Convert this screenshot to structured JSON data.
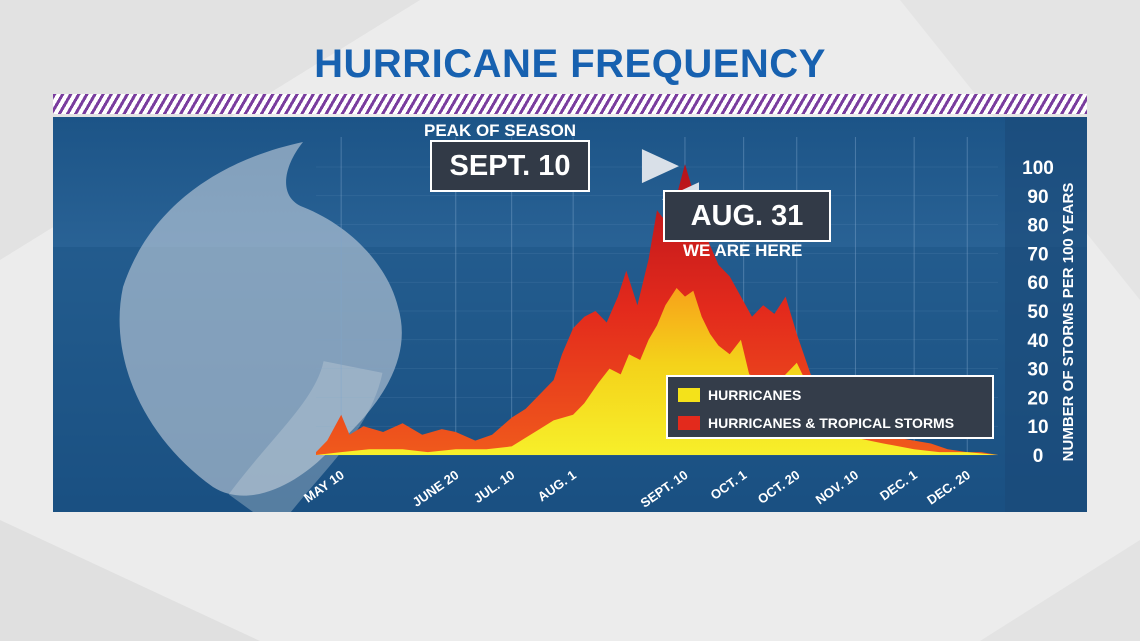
{
  "title": "HURRICANE FREQUENCY",
  "annotations": {
    "peak_caption": "PEAK OF SEASON",
    "peak_date": "SEPT. 10",
    "current_date": "AUG. 31",
    "current_caption": "WE ARE HERE"
  },
  "legend": {
    "hurricanes": "HURRICANES",
    "all_storms": "HURRICANES & TROPICAL STORMS"
  },
  "colors": {
    "title": "#1761b0",
    "hurricanes": "#f4e21a",
    "all_storms": "#e32a1c",
    "panel_bg": "#1f4f80",
    "stripe": "#7a3d9e"
  },
  "chart_data": {
    "type": "area",
    "ylabel": "NUMBER OF STORMS PER 100 YEARS",
    "ylim": [
      0,
      100
    ],
    "yticks": [
      0,
      10,
      20,
      30,
      40,
      50,
      60,
      70,
      80,
      90,
      100
    ],
    "xlim": [
      "May 1",
      "Dec 31"
    ],
    "xticks": [
      "MAY 10",
      "JUNE 20",
      "JUL. 10",
      "AUG. 1",
      "SEPT. 10",
      "OCT. 1",
      "OCT. 20",
      "NOV. 10",
      "DEC. 1",
      "DEC. 20"
    ],
    "grid": true,
    "legend_position": "bottom-right",
    "series": [
      {
        "name": "HURRICANES & TROPICAL STORMS",
        "x": [
          "May 1",
          "May 5",
          "May 10",
          "May 13",
          "May 18",
          "May 25",
          "Jun 1",
          "Jun 8",
          "Jun 15",
          "Jun 20",
          "Jun 27",
          "Jul 3",
          "Jul 10",
          "Jul 15",
          "Jul 20",
          "Jul 25",
          "Jul 28",
          "Aug 1",
          "Aug 5",
          "Aug 9",
          "Aug 13",
          "Aug 17",
          "Aug 20",
          "Aug 24",
          "Aug 28",
          "Aug 31",
          "Sep 4",
          "Sep 7",
          "Sep 10",
          "Sep 14",
          "Sep 18",
          "Sep 22",
          "Sep 26",
          "Sep 30",
          "Oct 4",
          "Oct 8",
          "Oct 12",
          "Oct 16",
          "Oct 20",
          "Oct 25",
          "Nov 1",
          "Nov 5",
          "Nov 10",
          "Nov 15",
          "Nov 20",
          "Nov 25",
          "Dec 1",
          "Dec 7",
          "Dec 13",
          "Dec 20",
          "Dec 25",
          "Dec 31"
        ],
        "values": [
          1,
          5,
          14,
          7,
          10,
          8,
          11,
          7,
          9,
          8,
          5,
          7,
          13,
          16,
          21,
          26,
          35,
          44,
          48,
          50,
          46,
          55,
          64,
          52,
          68,
          85,
          80,
          90,
          101,
          88,
          75,
          66,
          62,
          55,
          48,
          52,
          49,
          55,
          42,
          28,
          20,
          14,
          10,
          9,
          7,
          6,
          5,
          4,
          2,
          1,
          1,
          0
        ]
      },
      {
        "name": "HURRICANES",
        "x": [
          "May 1",
          "May 10",
          "May 20",
          "Jun 1",
          "Jun 10",
          "Jun 20",
          "Jul 1",
          "Jul 10",
          "Jul 15",
          "Jul 20",
          "Jul 25",
          "Aug 1",
          "Aug 5",
          "Aug 10",
          "Aug 14",
          "Aug 18",
          "Aug 21",
          "Aug 25",
          "Aug 28",
          "Aug 31",
          "Sep 3",
          "Sep 7",
          "Sep 10",
          "Sep 13",
          "Sep 16",
          "Sep 19",
          "Sep 22",
          "Sep 26",
          "Sep 30",
          "Oct 3",
          "Oct 8",
          "Oct 12",
          "Oct 16",
          "Oct 20",
          "Oct 25",
          "Nov 1",
          "Nov 10",
          "Nov 20",
          "Dec 1",
          "Dec 10",
          "Dec 20",
          "Dec 31"
        ],
        "values": [
          0,
          1,
          2,
          2,
          1,
          2,
          2,
          3,
          6,
          9,
          12,
          14,
          18,
          25,
          30,
          28,
          35,
          33,
          40,
          45,
          52,
          58,
          55,
          57,
          48,
          42,
          38,
          35,
          40,
          28,
          26,
          24,
          28,
          32,
          22,
          12,
          6,
          4,
          2,
          1,
          1,
          0
        ]
      }
    ]
  }
}
